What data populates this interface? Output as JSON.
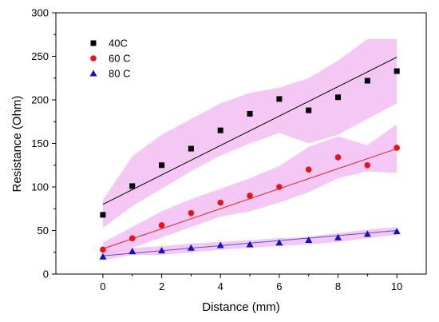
{
  "chart_data": {
    "type": "scatter",
    "title": "",
    "xlabel": "Distance (mm)",
    "ylabel": "Resistance (Ohm)",
    "xlim": [
      -1.6,
      11.0
    ],
    "ylim": [
      0,
      300
    ],
    "xticks": [
      0,
      2,
      4,
      6,
      8,
      10
    ],
    "yticks": [
      0,
      50,
      100,
      150,
      200,
      250,
      300
    ],
    "grid": false,
    "legend_position": "top-left",
    "series": [
      {
        "name": "40C",
        "marker": "square",
        "color": "#000000",
        "x": [
          0,
          1,
          2,
          3,
          4,
          5,
          6,
          7,
          8,
          9,
          10
        ],
        "y": [
          68,
          101,
          125,
          144,
          165,
          184,
          201,
          188,
          203,
          222,
          233
        ],
        "fit": {
          "start": [
            0,
            80
          ],
          "end": [
            10,
            249
          ],
          "color": "#000000"
        },
        "band": {
          "color": "#f0b4f0",
          "upper": [
            85,
            135,
            160,
            178,
            196,
            208,
            214,
            225,
            245,
            270,
            270
          ],
          "lower": [
            53,
            78,
            98,
            118,
            136,
            150,
            162,
            150,
            160,
            178,
            196
          ]
        }
      },
      {
        "name": "60 C",
        "marker": "circle",
        "color": "#ee1111",
        "x": [
          0,
          1,
          2,
          3,
          4,
          5,
          6,
          7,
          8,
          9,
          10
        ],
        "y": [
          28,
          41,
          56,
          70,
          82,
          90,
          100,
          120,
          134,
          125,
          145
        ],
        "fit": {
          "start": [
            0,
            29
          ],
          "end": [
            10,
            144
          ],
          "color": "#dd2222"
        },
        "band": {
          "color": "#f0b4f0",
          "upper": [
            36,
            54,
            72,
            86,
            98,
            110,
            124,
            146,
            158,
            148,
            172
          ],
          "lower": [
            22,
            30,
            42,
            54,
            66,
            72,
            82,
            94,
            110,
            118,
            116
          ]
        }
      },
      {
        "name": "80 C",
        "marker": "triangle",
        "color": "#1111cc",
        "x": [
          0,
          1,
          2,
          3,
          4,
          5,
          6,
          7,
          8,
          9,
          10
        ],
        "y": [
          20,
          26,
          27,
          30,
          33,
          34,
          36,
          39,
          42,
          46,
          49
        ],
        "fit": {
          "start": [
            0,
            21
          ],
          "end": [
            10,
            50
          ],
          "color": "#5555cc"
        },
        "band": {
          "color": "#f0b4f0",
          "upper": [
            24,
            30,
            32,
            35,
            37,
            39,
            41,
            43,
            47,
            51,
            54
          ],
          "lower": [
            16,
            22,
            22,
            25,
            28,
            30,
            32,
            34,
            37,
            41,
            45
          ]
        }
      }
    ]
  }
}
